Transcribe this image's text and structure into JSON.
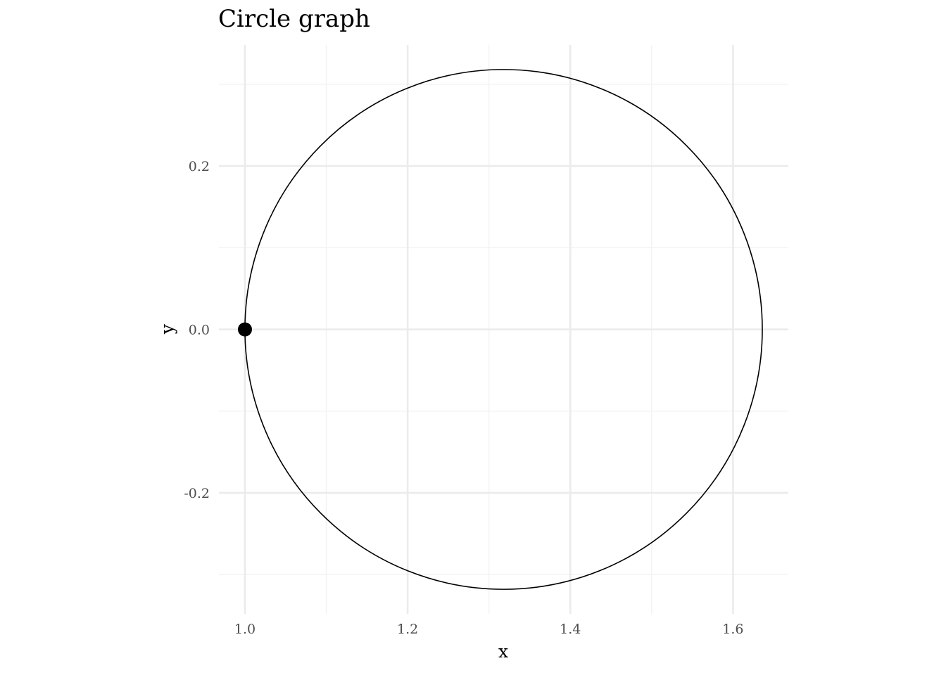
{
  "chart_data": {
    "type": "line",
    "title": "Circle graph",
    "xlabel": "x",
    "ylabel": "y",
    "xlim": [
      0.968,
      1.668
    ],
    "ylim": [
      -0.348,
      0.348
    ],
    "x_ticks": [
      1.0,
      1.2,
      1.4,
      1.6
    ],
    "x_tick_labels": [
      "1.0",
      "1.2",
      "1.4",
      "1.6"
    ],
    "y_ticks": [
      -0.2,
      0.0,
      0.2
    ],
    "y_tick_labels": [
      "-0.2",
      "0.0",
      "0.2"
    ],
    "grid": true,
    "series": [
      {
        "kind": "circle",
        "center": [
          1.318,
          0.0
        ],
        "radius": 0.318,
        "color": "#000000"
      },
      {
        "kind": "point",
        "x": 1.0,
        "y": 0.0,
        "color": "#000000"
      }
    ]
  }
}
